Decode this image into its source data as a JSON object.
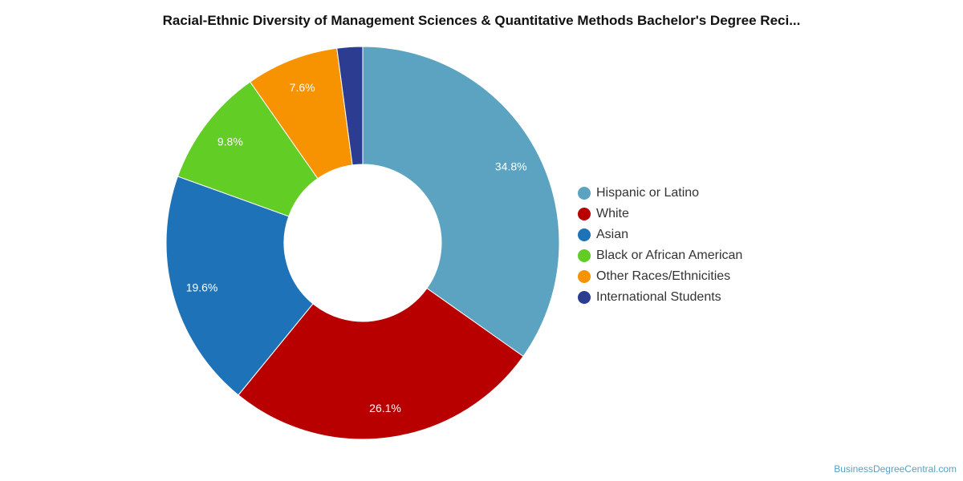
{
  "title": "Racial-Ethnic Diversity of Management Sciences & Quantitative Methods Bachelor's Degree Reci...",
  "credit": "BusinessDegreeCentral.com",
  "chart_data": {
    "type": "pie",
    "donut": true,
    "title": "Racial-Ethnic Diversity of Management Sciences & Quantitative Methods Bachelor's Degree Reci...",
    "legend_position": "right",
    "slices": [
      {
        "name": "Hispanic or Latino",
        "value": 34.8,
        "label": "34.8%",
        "color": "#5ba3c0"
      },
      {
        "name": "White",
        "value": 26.1,
        "label": "26.1%",
        "color": "#b80000"
      },
      {
        "name": "Asian",
        "value": 19.6,
        "label": "19.6%",
        "color": "#1e73b8"
      },
      {
        "name": "Black or African American",
        "value": 9.8,
        "label": "9.8%",
        "color": "#62cd24"
      },
      {
        "name": "Other Races/Ethnicities",
        "value": 7.6,
        "label": "7.6%",
        "color": "#f79300"
      },
      {
        "name": "International Students",
        "value": 2.1,
        "label": "",
        "color": "#2c3d91"
      }
    ]
  }
}
